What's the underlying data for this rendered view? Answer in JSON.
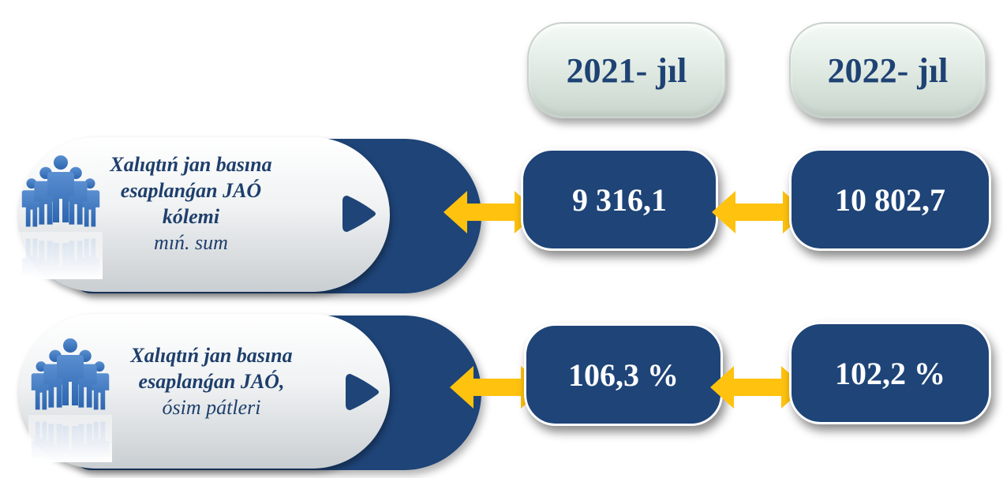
{
  "headers": {
    "year1": "2021- jıl",
    "year2": "2022- jıl"
  },
  "rows": [
    {
      "label_lines": [
        "Xalıqtıń jan basına",
        "esaplanǵan JAÓ",
        "kólemi"
      ],
      "unit": "mıń. sum",
      "value1": "9 316,1",
      "value2": "10 802,7"
    },
    {
      "label_lines": [
        "Xalıqtıń jan basına",
        "esaplanǵan JAÓ,"
      ],
      "unit": "ósim pátleri",
      "value1": "106,3 %",
      "value2": "102,2 %"
    }
  ],
  "icons": {
    "people": "people-group-icon",
    "arrow": "double-arrow-icon",
    "pointer": "triangle-pointer-icon"
  },
  "colors": {
    "navy": "#1e4478",
    "text_navy": "#1e3f6c",
    "arrow": "#ffc20e",
    "header_fill": "#e2ece5"
  }
}
